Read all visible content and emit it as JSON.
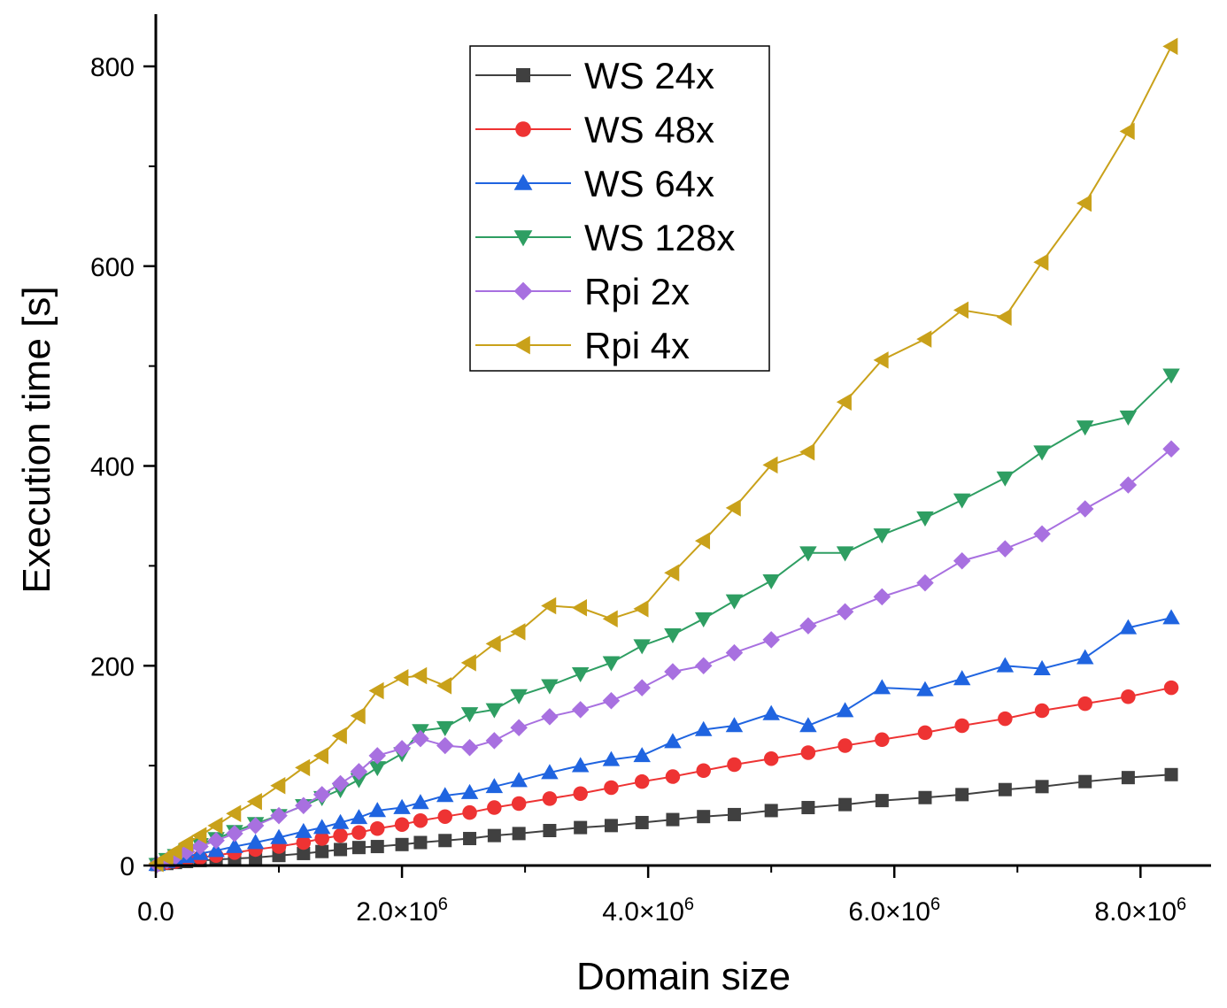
{
  "chart_data": {
    "type": "line",
    "title": "",
    "xlabel": "Domain size",
    "ylabel": "Execution time [s]",
    "xlim": [
      0,
      8500000
    ],
    "ylim": [
      0,
      850
    ],
    "grid": false,
    "legend_position": "top-center",
    "x_ticks": [
      {
        "value": 0,
        "label": "0.0"
      },
      {
        "value": 2000000,
        "label": "2.0×10",
        "exp": "6"
      },
      {
        "value": 4000000,
        "label": "4.0×10",
        "exp": "6"
      },
      {
        "value": 6000000,
        "label": "6.0×10",
        "exp": "6"
      },
      {
        "value": 8000000,
        "label": "8.0×10",
        "exp": "6"
      }
    ],
    "y_ticks": [
      {
        "value": 0,
        "label": "0"
      },
      {
        "value": 200,
        "label": "200"
      },
      {
        "value": 400,
        "label": "400"
      },
      {
        "value": 600,
        "label": "600"
      },
      {
        "value": 800,
        "label": "800"
      }
    ],
    "x": [
      10000,
      40000,
      90000,
      160000,
      250000,
      360000,
      490000,
      640000,
      810000,
      1000000,
      1210000,
      1440000,
      1690000,
      1960000,
      2250000,
      2560000,
      2890000,
      3240000,
      3610000,
      4000000,
      4410000,
      4840000,
      5290000,
      5760000,
      6250000,
      6760000,
      7290000,
      7840000,
      8410000
    ],
    "series": [
      {
        "name": "WS 24x",
        "color": "#404040",
        "marker": "square",
        "x": [
          10000,
          90000,
          160000,
          250000,
          360000,
          490000,
          640000,
          810000,
          1000000,
          1200000,
          1350000,
          1500000,
          1650000,
          1800000,
          2000000,
          2150000,
          2350000,
          2550000,
          2750000,
          2950000,
          3200000,
          3450000,
          3700000,
          3950000,
          4200000,
          4450000,
          4700000,
          5000000,
          5300000,
          5600000,
          5900000,
          6250000,
          6550000,
          6900000,
          7200000,
          7550000,
          7900000,
          8250000
        ],
        "values": [
          1,
          2,
          3,
          4,
          5,
          6,
          7,
          8,
          10,
          12,
          14,
          16,
          18,
          19,
          21,
          23,
          25,
          27,
          30,
          32,
          35,
          38,
          40,
          43,
          46,
          49,
          51,
          55,
          58,
          61,
          65,
          68,
          71,
          76,
          79,
          84,
          88,
          91
        ]
      },
      {
        "name": "WS 48x",
        "color": "#ee3333",
        "marker": "circle",
        "x": [
          10000,
          90000,
          160000,
          250000,
          360000,
          490000,
          640000,
          810000,
          1000000,
          1200000,
          1350000,
          1500000,
          1650000,
          1800000,
          2000000,
          2150000,
          2350000,
          2550000,
          2750000,
          2950000,
          3200000,
          3450000,
          3700000,
          3950000,
          4200000,
          4450000,
          4700000,
          5000000,
          5300000,
          5600000,
          5900000,
          6250000,
          6550000,
          6900000,
          7200000,
          7550000,
          7900000,
          8250000
        ],
        "values": [
          1,
          3,
          4,
          6,
          8,
          10,
          13,
          16,
          19,
          23,
          27,
          30,
          33,
          37,
          41,
          45,
          49,
          53,
          58,
          62,
          67,
          72,
          78,
          84,
          89,
          95,
          101,
          107,
          113,
          120,
          126,
          133,
          140,
          147,
          155,
          162,
          169,
          178
        ]
      },
      {
        "name": "WS 64x",
        "color": "#1f64e0",
        "marker": "triangle-up",
        "x": [
          10000,
          90000,
          160000,
          250000,
          360000,
          490000,
          640000,
          810000,
          1000000,
          1200000,
          1350000,
          1500000,
          1650000,
          1800000,
          2000000,
          2150000,
          2350000,
          2550000,
          2750000,
          2950000,
          3200000,
          3450000,
          3700000,
          3950000,
          4200000,
          4450000,
          4700000,
          5000000,
          5300000,
          5600000,
          5900000,
          6250000,
          6550000,
          6900000,
          7200000,
          7550000,
          7900000,
          8250000
        ],
        "values": [
          1,
          4,
          6,
          9,
          12,
          15,
          19,
          23,
          28,
          34,
          38,
          43,
          48,
          55,
          58,
          63,
          70,
          73,
          79,
          85,
          93,
          100,
          106,
          110,
          124,
          136,
          140,
          152,
          140,
          155,
          178,
          176,
          187,
          200,
          197,
          208,
          238,
          248
        ]
      },
      {
        "name": "WS 128x",
        "color": "#2e9e62",
        "marker": "triangle-down",
        "x": [
          10000,
          90000,
          160000,
          250000,
          360000,
          490000,
          640000,
          810000,
          1000000,
          1200000,
          1350000,
          1500000,
          1650000,
          1800000,
          2000000,
          2150000,
          2350000,
          2550000,
          2750000,
          2950000,
          3200000,
          3450000,
          3700000,
          3950000,
          4200000,
          4450000,
          4700000,
          5000000,
          5300000,
          5600000,
          5900000,
          6250000,
          6550000,
          6900000,
          7200000,
          7550000,
          7900000,
          8250000
        ],
        "values": [
          1,
          6,
          10,
          15,
          21,
          27,
          34,
          42,
          50,
          60,
          68,
          76,
          86,
          98,
          112,
          135,
          138,
          152,
          156,
          170,
          180,
          192,
          203,
          220,
          231,
          247,
          265,
          285,
          313,
          313,
          331,
          348,
          366,
          388,
          414,
          439,
          449,
          491
        ]
      },
      {
        "name": "Rpi 2x",
        "color": "#a870e0",
        "marker": "diamond",
        "x": [
          10000,
          90000,
          160000,
          250000,
          360000,
          490000,
          640000,
          810000,
          1000000,
          1200000,
          1350000,
          1500000,
          1650000,
          1800000,
          2000000,
          2150000,
          2350000,
          2550000,
          2750000,
          2950000,
          3200000,
          3450000,
          3700000,
          3950000,
          4200000,
          4450000,
          4700000,
          5000000,
          5300000,
          5600000,
          5900000,
          6250000,
          6550000,
          6900000,
          7200000,
          7550000,
          7900000,
          8250000
        ],
        "values": [
          1,
          5,
          9,
          14,
          19,
          25,
          32,
          40,
          50,
          60,
          71,
          82,
          94,
          110,
          117,
          127,
          120,
          118,
          125,
          138,
          149,
          156,
          165,
          178,
          194,
          200,
          213,
          226,
          240,
          254,
          269,
          283,
          305,
          317,
          332,
          357,
          381,
          417
        ]
      },
      {
        "name": "Rpi 4x",
        "color": "#c9a11a",
        "marker": "triangle-left",
        "x": [
          10000,
          90000,
          160000,
          250000,
          360000,
          490000,
          640000,
          810000,
          1000000,
          1200000,
          1350000,
          1500000,
          1650000,
          1800000,
          2000000,
          2150000,
          2350000,
          2550000,
          2750000,
          2950000,
          3200000,
          3450000,
          3700000,
          3950000,
          4200000,
          4450000,
          4700000,
          5000000,
          5300000,
          5600000,
          5900000,
          6250000,
          6550000,
          6900000,
          7200000,
          7550000,
          7900000,
          8250000
        ],
        "values": [
          2,
          8,
          14,
          22,
          30,
          40,
          52,
          64,
          80,
          98,
          110,
          130,
          150,
          175,
          188,
          190,
          180,
          203,
          222,
          234,
          260,
          258,
          247,
          257,
          293,
          325,
          358,
          401,
          414,
          464,
          506,
          527,
          556,
          549,
          604,
          663,
          735,
          820
        ]
      }
    ]
  }
}
